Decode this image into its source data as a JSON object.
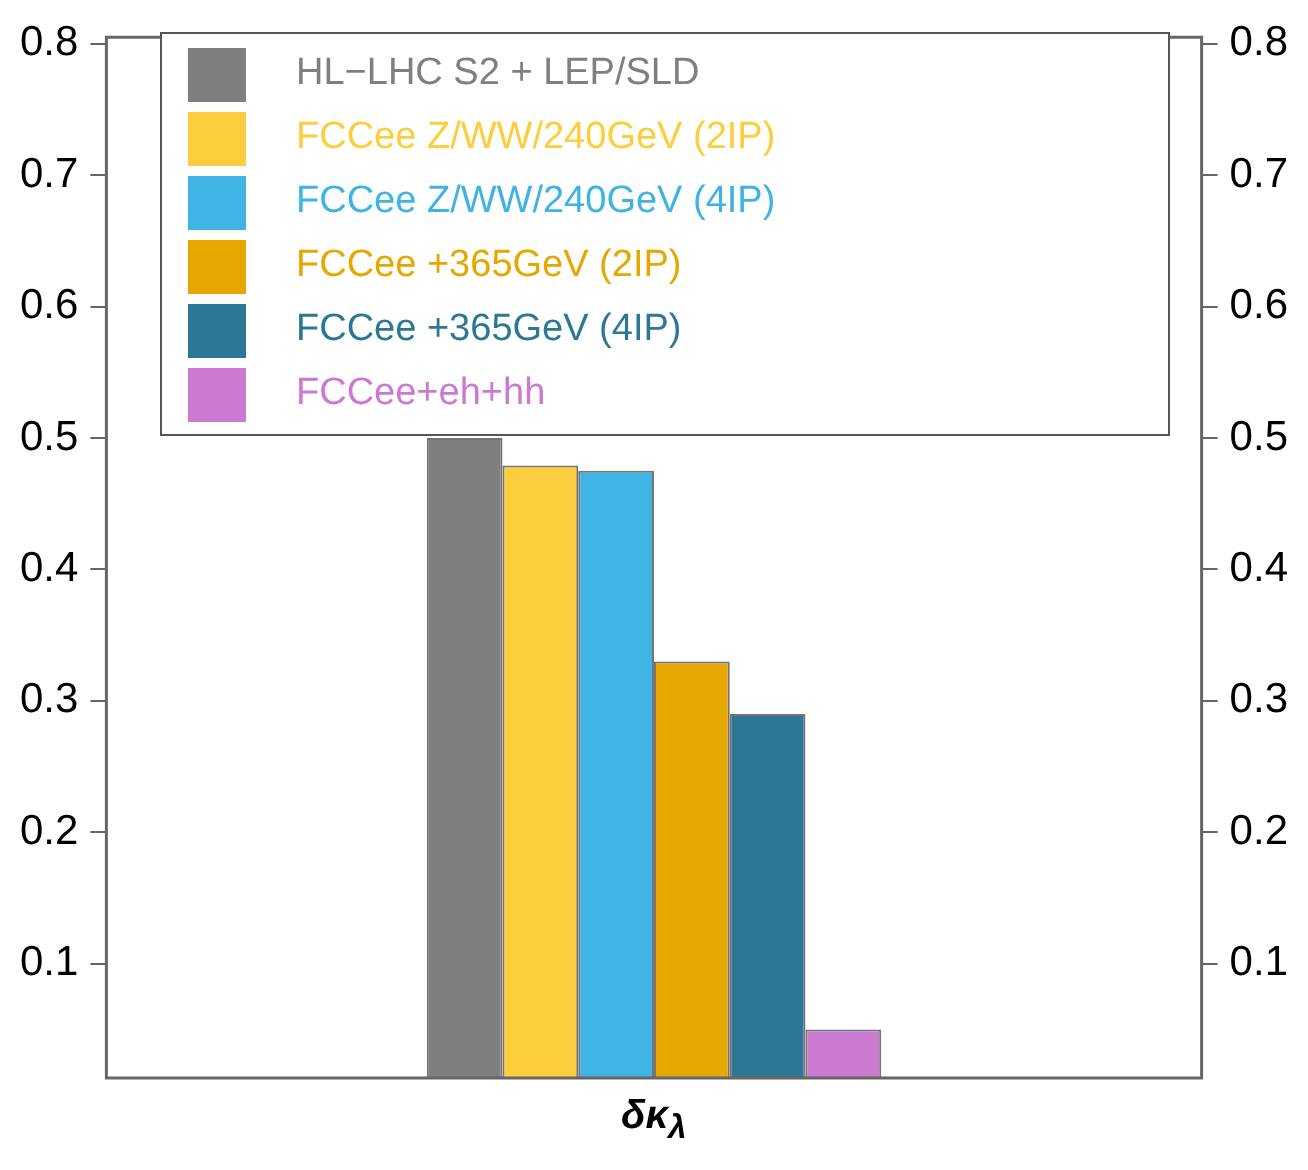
{
  "chart_data": {
    "type": "bar",
    "categories": [
      null
    ],
    "xlabel": "δκ$_{λ}$",
    "series": [
      {
        "name": "HL−LHC S2 + LEP/SLD",
        "color": "#7f7f7f",
        "values": [
          0.5
        ]
      },
      {
        "name": "FCCee Z/WW/240GeV (2IP)",
        "color": "#fccd3c",
        "values": [
          0.479
        ]
      },
      {
        "name": "FCCee Z/WW/240GeV (4IP)",
        "color": "#40b3e5",
        "values": [
          0.475
        ]
      },
      {
        "name": "FCCee +365GeV (2IP)",
        "color": "#e6a700",
        "values": [
          0.33
        ]
      },
      {
        "name": "FCCee +365GeV (4IP)",
        "color": "#2b7795",
        "values": [
          0.29
        ]
      },
      {
        "name": "FCCee+eh+hh",
        "color": "#cc7ad1",
        "values": [
          0.05
        ]
      }
    ],
    "ylim": [
      0.013,
      0.805
    ],
    "yticks": [
      0.1,
      0.2,
      0.3,
      0.4,
      0.5,
      0.6,
      0.7,
      0.8
    ],
    "y2lim": [
      0.013,
      0.805
    ],
    "y2ticks": [
      0.1,
      0.2,
      0.3,
      0.4,
      0.5,
      0.6,
      0.7,
      0.8
    ],
    "grid": false,
    "legend": "top"
  }
}
